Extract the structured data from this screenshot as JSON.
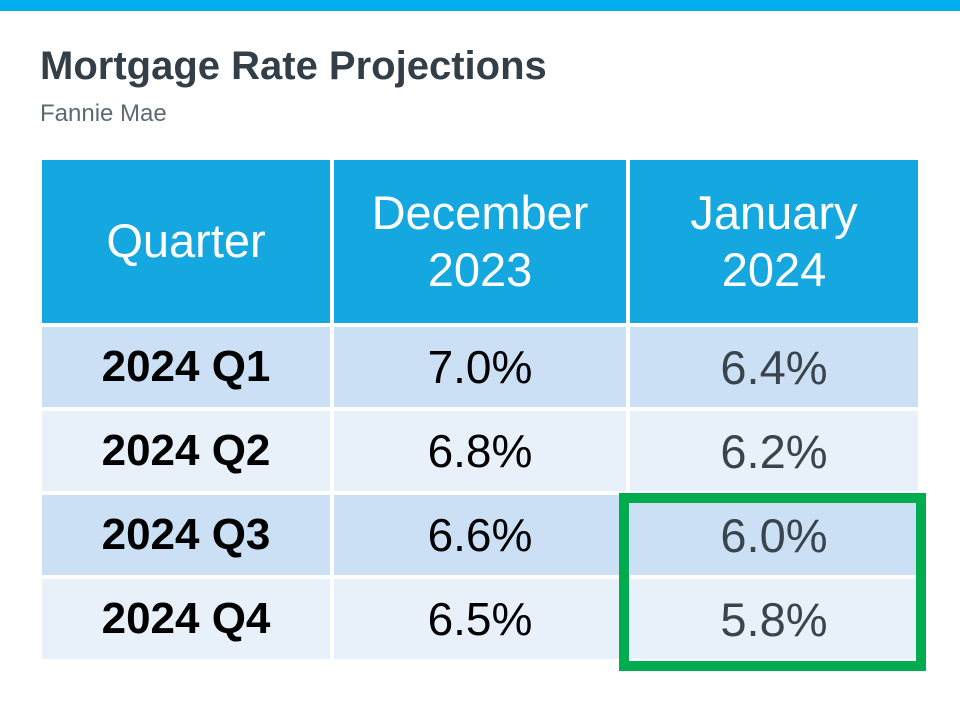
{
  "slide": {
    "title": "Mortgage Rate Projections",
    "subtitle": "Fannie Mae"
  },
  "table": {
    "headers": {
      "quarter": "Quarter",
      "dec": "December\n2023",
      "jan": "January\n2024"
    },
    "rows": [
      {
        "quarter": "2024 Q1",
        "dec": "7.0%",
        "jan": "6.4%"
      },
      {
        "quarter": "2024 Q2",
        "dec": "6.8%",
        "jan": "6.2%"
      },
      {
        "quarter": "2024 Q3",
        "dec": "6.6%",
        "jan": "6.0%"
      },
      {
        "quarter": "2024 Q4",
        "dec": "6.5%",
        "jan": "5.8%"
      }
    ]
  },
  "highlight": {
    "description": "Green box around January 2024 values for 2024 Q3 and 2024 Q4",
    "color": "#00AC4E"
  },
  "colors": {
    "top_bar": "#00AEEF",
    "table_header_bg": "#14A7E0",
    "row_alt_dark": "#CBE0F4",
    "row_alt_light": "#E8F1FA",
    "title_text": "#333F48",
    "subtitle_text": "#5C6B73",
    "value_text": "#000000",
    "jan_value_text": "#3A444D",
    "highlight_green": "#00AC4E"
  },
  "chart_data": {
    "type": "table",
    "title": "Mortgage Rate Projections",
    "subtitle": "Fannie Mae",
    "columns": [
      "Quarter",
      "December 2023",
      "January 2024"
    ],
    "rows": [
      [
        "2024 Q1",
        "7.0%",
        "6.4%"
      ],
      [
        "2024 Q2",
        "6.8%",
        "6.2%"
      ],
      [
        "2024 Q3",
        "6.6%",
        "6.0%"
      ],
      [
        "2024 Q4",
        "6.5%",
        "5.8%"
      ]
    ],
    "series": [
      {
        "name": "December 2023",
        "values": [
          7.0,
          6.8,
          6.6,
          6.5
        ]
      },
      {
        "name": "January 2024",
        "values": [
          6.4,
          6.2,
          6.0,
          5.8
        ]
      }
    ],
    "categories": [
      "2024 Q1",
      "2024 Q2",
      "2024 Q3",
      "2024 Q4"
    ],
    "unit": "percent",
    "highlighted_cells": [
      {
        "row": "2024 Q3",
        "column": "January 2024",
        "value": "6.0%"
      },
      {
        "row": "2024 Q4",
        "column": "January 2024",
        "value": "5.8%"
      }
    ]
  }
}
